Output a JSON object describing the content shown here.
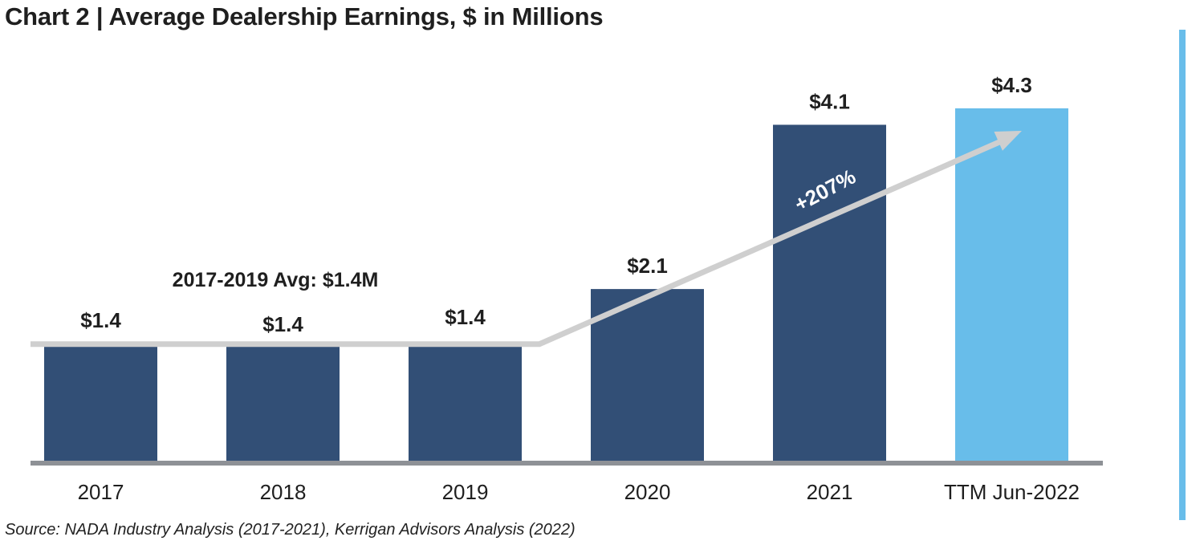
{
  "title": "Chart 2 | Average Dealership Earnings, $ in Millions",
  "source": "Source: NADA Industry Analysis (2017-2021), Kerrigan Advisors Analysis (2022)",
  "colors": {
    "bar_dark": "#324f76",
    "bar_light": "#68bdea",
    "axis": "#8e9196",
    "trend": "#cfcfcf",
    "text": "#1f1f1f",
    "accent_rule": "#68bdea"
  },
  "chart_data": {
    "type": "bar",
    "title": "Chart 2 | Average Dealership Earnings, $ in Millions",
    "xlabel": "",
    "ylabel": "",
    "ylim": [
      0,
      4.3
    ],
    "grid": false,
    "categories": [
      "2017",
      "2018",
      "2019",
      "2020",
      "2021",
      "TTM Jun-2022"
    ],
    "values": [
      1.4,
      1.4,
      1.4,
      2.1,
      4.1,
      4.3
    ],
    "data_labels": [
      "$1.4",
      "$1.4",
      "$1.4",
      "$2.1",
      "$4.1",
      "$4.3"
    ],
    "highlight_index": 5,
    "annotations": {
      "average_label": "2017-2019 Avg: $1.4M",
      "average_value": 1.4,
      "growth_label": "+207%"
    }
  }
}
